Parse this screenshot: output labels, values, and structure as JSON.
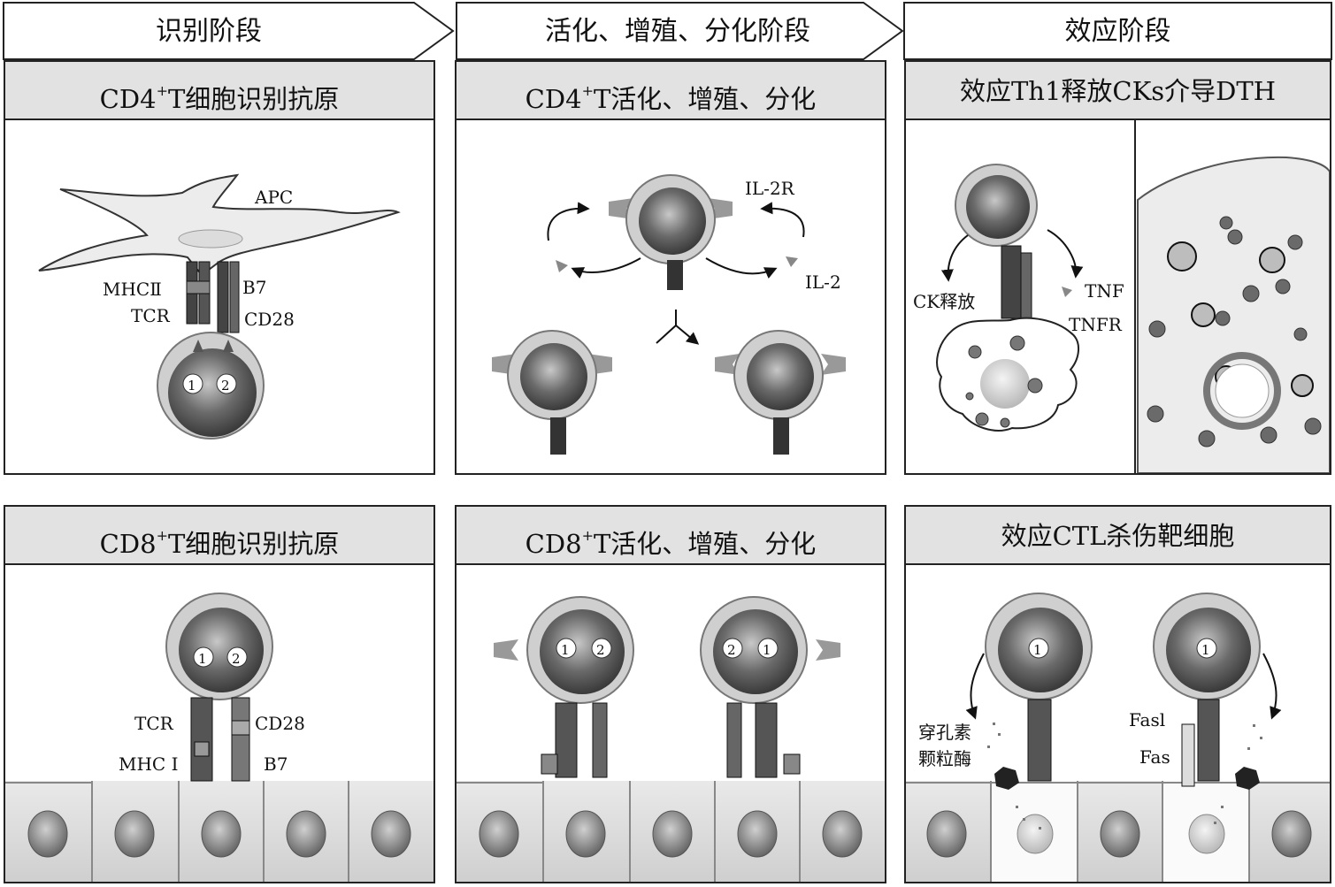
{
  "stages": [
    {
      "label": "识别阶段"
    },
    {
      "label": "活化、增殖、分化阶段"
    },
    {
      "label": "效应阶段"
    }
  ],
  "panels": {
    "cd4_recognition": {
      "title_pre": "CD4",
      "title_sup": "+",
      "title_post": "T细胞识别抗原",
      "labels": {
        "apc": "APC",
        "mhc2": "MHCⅡ",
        "tcr": "TCR",
        "b7": "B7",
        "cd28": "CD28",
        "sig1": "1",
        "sig2": "2"
      }
    },
    "cd4_activation": {
      "title_pre": "CD4",
      "title_sup": "+",
      "title_post": "T活化、增殖、分化",
      "labels": {
        "il2r": "IL-2R",
        "il2": "IL-2"
      }
    },
    "th1_dth": {
      "title": "效应Th1释放CKs介导DTH",
      "labels": {
        "ck_release": "CK释放",
        "tnf": "TNF",
        "tnfr": "TNFR"
      }
    },
    "cd8_recognition": {
      "title_pre": "CD8",
      "title_sup": "+",
      "title_post": "T细胞识别抗原",
      "labels": {
        "tcr": "TCR",
        "cd28": "CD28",
        "mhc1": "MHC Ⅰ",
        "b7": "B7",
        "sig1": "1",
        "sig2": "2"
      }
    },
    "cd8_activation": {
      "title_pre": "CD8",
      "title_sup": "+",
      "title_post": "T活化、增殖、分化",
      "labels": {
        "sig1": "1",
        "sig2": "2"
      }
    },
    "ctl_killing": {
      "title": "效应CTL杀伤靶细胞",
      "labels": {
        "perforin": "穿孔素",
        "granzyme": "颗粒酶",
        "fasl": "Fasl",
        "fas": "Fas",
        "sig1": "1"
      }
    }
  }
}
